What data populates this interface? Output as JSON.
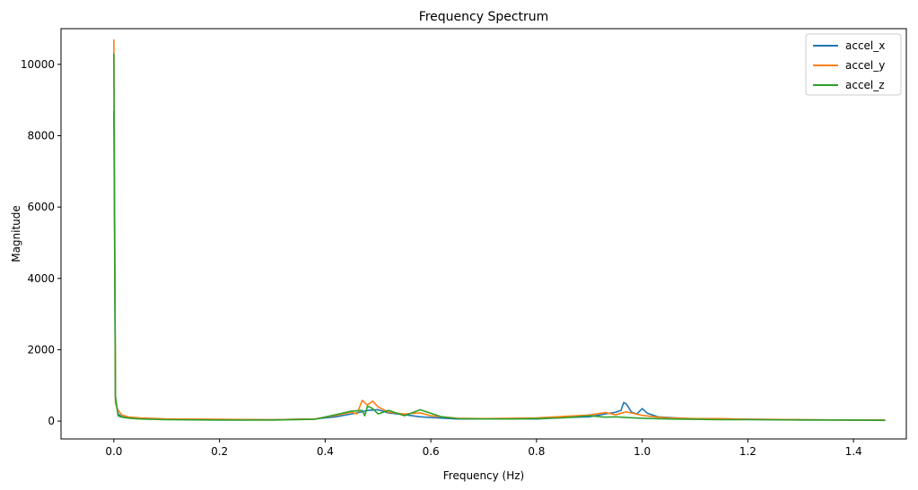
{
  "chart_data": {
    "type": "line",
    "title": "Frequency Spectrum",
    "xlabel": "Frequency (Hz)",
    "ylabel": "Magnitude",
    "xlim": [
      -0.1,
      1.5
    ],
    "ylim": [
      -500,
      11000
    ],
    "xticks": [
      0.0,
      0.2,
      0.4,
      0.6,
      0.8,
      1.0,
      1.2,
      1.4
    ],
    "xtick_labels": [
      "0.0",
      "0.2",
      "0.4",
      "0.6",
      "0.8",
      "1.0",
      "1.2",
      "1.4"
    ],
    "yticks": [
      0,
      2000,
      4000,
      6000,
      8000,
      10000
    ],
    "ytick_labels": [
      "0",
      "2000",
      "4000",
      "6000",
      "8000",
      "10000"
    ],
    "grid": false,
    "legend_position": "top-right",
    "series": [
      {
        "name": "accel_x",
        "color": "#1f77b4",
        "points": [
          [
            0.0,
            8700
          ],
          [
            0.003,
            600
          ],
          [
            0.008,
            200
          ],
          [
            0.015,
            120
          ],
          [
            0.03,
            90
          ],
          [
            0.05,
            70
          ],
          [
            0.1,
            50
          ],
          [
            0.2,
            40
          ],
          [
            0.3,
            40
          ],
          [
            0.38,
            60
          ],
          [
            0.42,
            120
          ],
          [
            0.45,
            200
          ],
          [
            0.47,
            260
          ],
          [
            0.48,
            300
          ],
          [
            0.5,
            320
          ],
          [
            0.52,
            230
          ],
          [
            0.55,
            180
          ],
          [
            0.58,
            120
          ],
          [
            0.6,
            100
          ],
          [
            0.65,
            60
          ],
          [
            0.7,
            60
          ],
          [
            0.75,
            70
          ],
          [
            0.8,
            60
          ],
          [
            0.85,
            100
          ],
          [
            0.9,
            120
          ],
          [
            0.93,
            200
          ],
          [
            0.95,
            250
          ],
          [
            0.96,
            300
          ],
          [
            0.965,
            520
          ],
          [
            0.97,
            480
          ],
          [
            0.98,
            250
          ],
          [
            0.99,
            200
          ],
          [
            1.0,
            350
          ],
          [
            1.01,
            220
          ],
          [
            1.03,
            120
          ],
          [
            1.05,
            100
          ],
          [
            1.1,
            60
          ],
          [
            1.15,
            60
          ],
          [
            1.2,
            50
          ],
          [
            1.3,
            40
          ],
          [
            1.4,
            30
          ],
          [
            1.46,
            30
          ]
        ]
      },
      {
        "name": "accel_y",
        "color": "#ff7f0e",
        "points": [
          [
            0.0,
            10700
          ],
          [
            0.003,
            500
          ],
          [
            0.008,
            300
          ],
          [
            0.015,
            170
          ],
          [
            0.03,
            110
          ],
          [
            0.05,
            90
          ],
          [
            0.1,
            60
          ],
          [
            0.2,
            50
          ],
          [
            0.3,
            40
          ],
          [
            0.38,
            60
          ],
          [
            0.42,
            160
          ],
          [
            0.45,
            250
          ],
          [
            0.46,
            200
          ],
          [
            0.47,
            580
          ],
          [
            0.48,
            450
          ],
          [
            0.49,
            560
          ],
          [
            0.5,
            400
          ],
          [
            0.52,
            250
          ],
          [
            0.55,
            200
          ],
          [
            0.58,
            230
          ],
          [
            0.6,
            150
          ],
          [
            0.65,
            80
          ],
          [
            0.7,
            70
          ],
          [
            0.75,
            80
          ],
          [
            0.8,
            90
          ],
          [
            0.85,
            130
          ],
          [
            0.9,
            170
          ],
          [
            0.93,
            240
          ],
          [
            0.95,
            180
          ],
          [
            0.97,
            260
          ],
          [
            1.0,
            160
          ],
          [
            1.03,
            110
          ],
          [
            1.05,
            90
          ],
          [
            1.1,
            70
          ],
          [
            1.15,
            70
          ],
          [
            1.2,
            50
          ],
          [
            1.3,
            40
          ],
          [
            1.4,
            30
          ],
          [
            1.46,
            30
          ]
        ]
      },
      {
        "name": "accel_z",
        "color": "#2ca02c",
        "points": [
          [
            0.0,
            10300
          ],
          [
            0.003,
            700
          ],
          [
            0.008,
            150
          ],
          [
            0.015,
            110
          ],
          [
            0.03,
            80
          ],
          [
            0.05,
            60
          ],
          [
            0.1,
            40
          ],
          [
            0.2,
            30
          ],
          [
            0.3,
            30
          ],
          [
            0.38,
            50
          ],
          [
            0.42,
            180
          ],
          [
            0.45,
            280
          ],
          [
            0.47,
            300
          ],
          [
            0.475,
            150
          ],
          [
            0.48,
            420
          ],
          [
            0.49,
            350
          ],
          [
            0.5,
            200
          ],
          [
            0.52,
            300
          ],
          [
            0.55,
            150
          ],
          [
            0.58,
            320
          ],
          [
            0.6,
            220
          ],
          [
            0.62,
            120
          ],
          [
            0.65,
            70
          ],
          [
            0.7,
            60
          ],
          [
            0.75,
            60
          ],
          [
            0.8,
            70
          ],
          [
            0.85,
            90
          ],
          [
            0.9,
            150
          ],
          [
            0.93,
            110
          ],
          [
            0.95,
            120
          ],
          [
            0.97,
            100
          ],
          [
            1.0,
            80
          ],
          [
            1.05,
            60
          ],
          [
            1.1,
            50
          ],
          [
            1.15,
            40
          ],
          [
            1.2,
            40
          ],
          [
            1.3,
            30
          ],
          [
            1.4,
            30
          ],
          [
            1.46,
            20
          ]
        ]
      }
    ]
  }
}
